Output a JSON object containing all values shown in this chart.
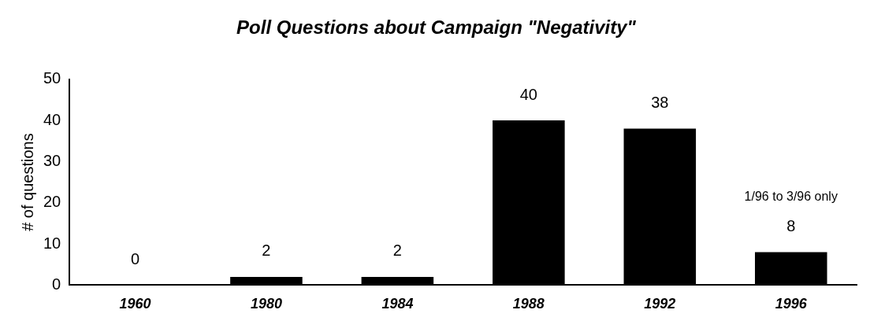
{
  "chart_data": {
    "type": "bar",
    "title": "Poll Questions about Campaign \"Negativity\"",
    "ylabel": "# of questions",
    "categories": [
      "1960",
      "1980",
      "1984",
      "1988",
      "1992",
      "1996"
    ],
    "values": [
      0,
      2,
      2,
      40,
      38,
      8
    ],
    "color": "#000000",
    "ylim": [
      0,
      50
    ],
    "yticks": [
      0,
      10,
      20,
      30,
      40,
      50
    ],
    "grid": false,
    "legend": false,
    "data_labels": true,
    "annotations": [
      "1/96 to 3/96 only"
    ]
  }
}
